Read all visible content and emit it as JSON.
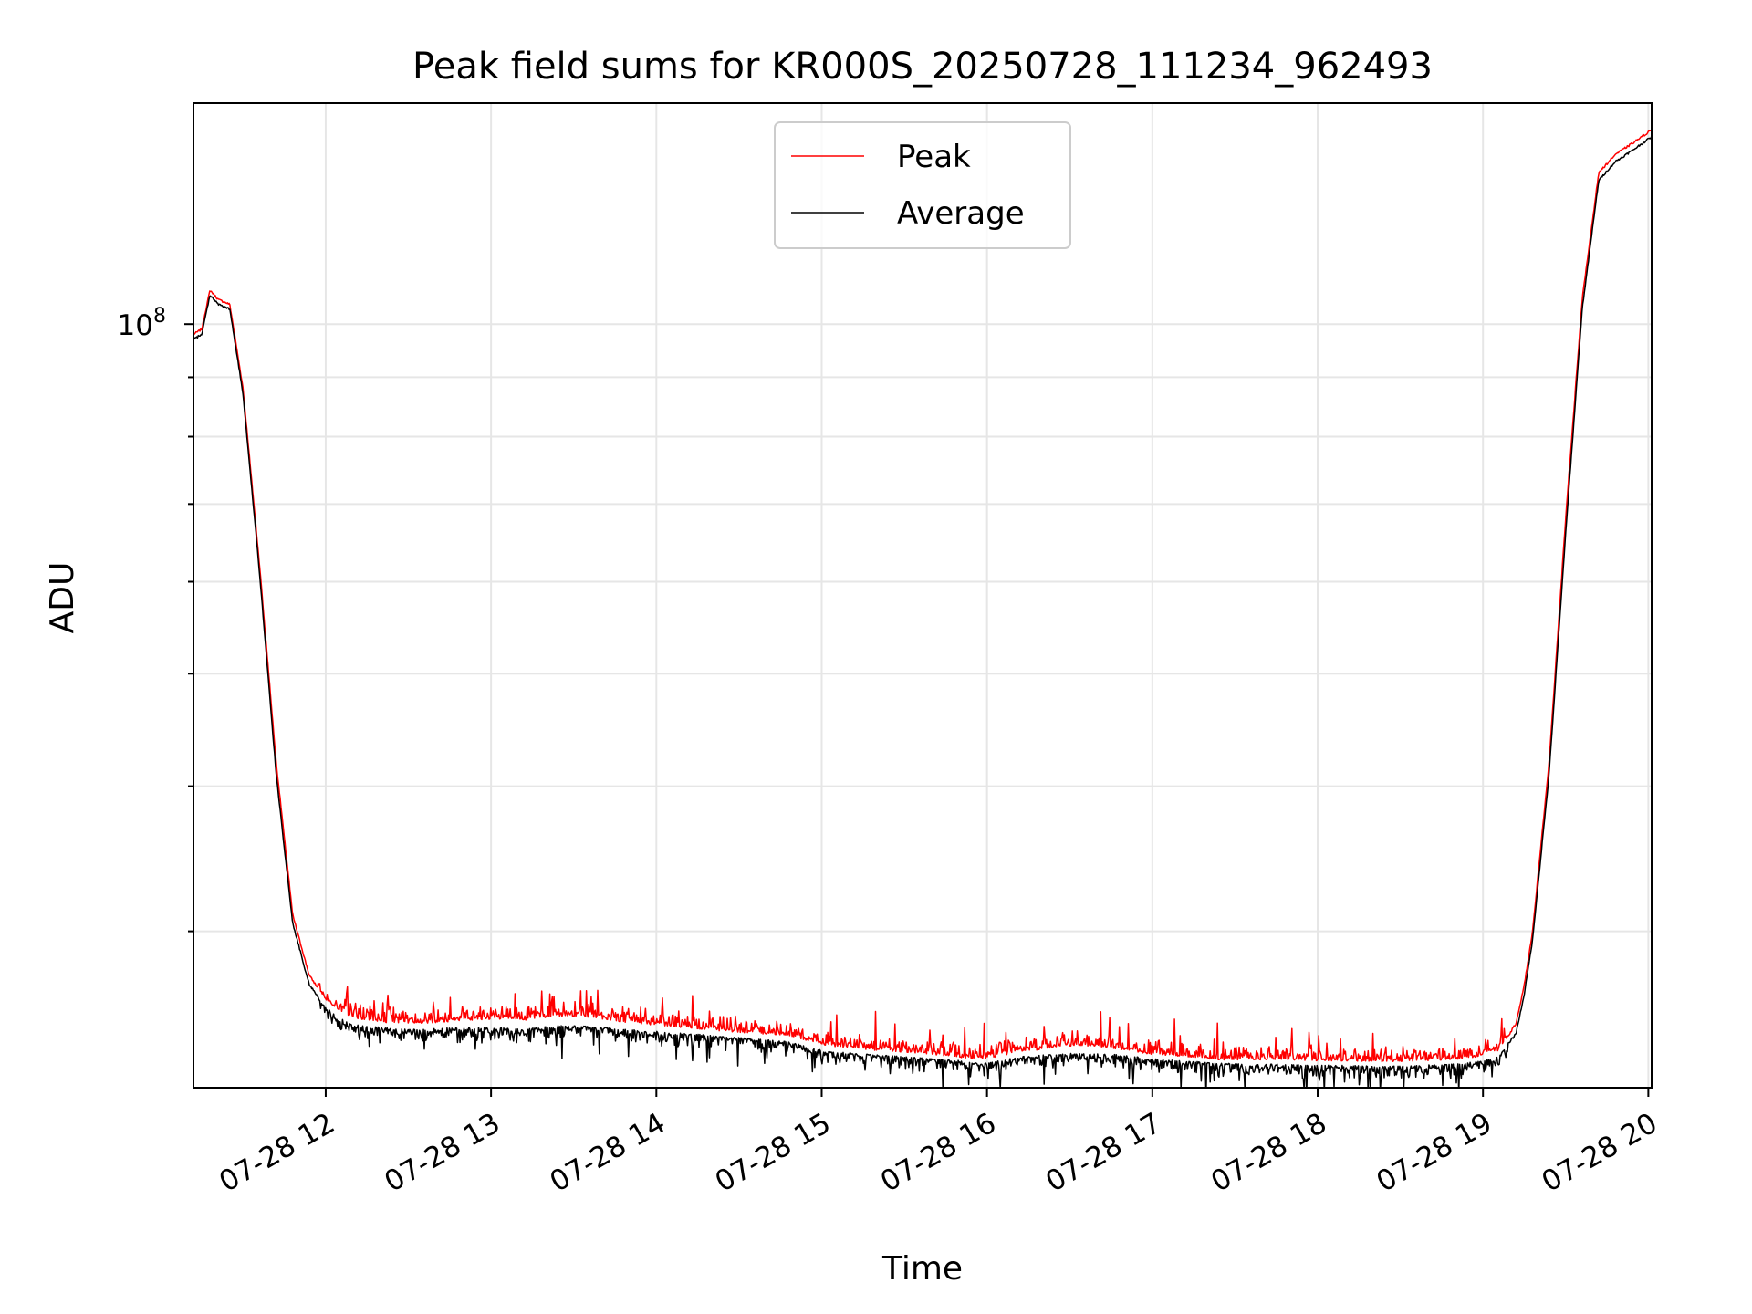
{
  "chart_data": {
    "type": "line",
    "title": "Peak field sums for KR000S_20250728_111234_962493",
    "xlabel": "Time",
    "ylabel": "ADU",
    "yscale": "log",
    "x_tick_labels": [
      "07-28 12",
      "07-28 13",
      "07-28 14",
      "07-28 15",
      "07-28 16",
      "07-28 17",
      "07-28 18",
      "07-28 19",
      "07-28 20"
    ],
    "y_tick_label": {
      "base": "10",
      "exponent": "8"
    },
    "xlim": [
      "07-28 11:12",
      "07-28 20:00"
    ],
    "ylim": [
      22000000,
      155000000
    ],
    "grid": true,
    "legend_position": "upper center",
    "x_hours": [
      11.2,
      11.25,
      11.3,
      11.35,
      11.42,
      11.5,
      11.6,
      11.7,
      11.8,
      11.9,
      12.0,
      12.1,
      12.2,
      12.4,
      12.6,
      12.8,
      13.0,
      13.2,
      13.4,
      13.6,
      13.8,
      14.0,
      14.2,
      14.4,
      14.6,
      14.8,
      15.0,
      15.2,
      15.4,
      15.6,
      15.8,
      15.9,
      16.0,
      16.1,
      16.2,
      16.3,
      16.45,
      16.6,
      16.8,
      17.0,
      17.2,
      17.4,
      17.6,
      17.8,
      18.0,
      18.2,
      18.4,
      18.6,
      18.8,
      19.0,
      19.1,
      19.2,
      19.25,
      19.3,
      19.4,
      19.5,
      19.6,
      19.7,
      19.8,
      19.9,
      20.02
    ],
    "series": [
      {
        "name": "Peak",
        "color": "#ff0000",
        "values": [
          98000000,
          99000000,
          107000000,
          105000000,
          104000000,
          88000000,
          62000000,
          42000000,
          31000000,
          27500000,
          26200000,
          25500000,
          25200000,
          25000000,
          25000000,
          25100000,
          25200000,
          25150000,
          25350000,
          25300000,
          25050000,
          24900000,
          24750000,
          24600000,
          24500000,
          24400000,
          23950000,
          23750000,
          23650000,
          23550000,
          23400000,
          23300000,
          23300000,
          23450000,
          23650000,
          23700000,
          23900000,
          23900000,
          23750000,
          23500000,
          23400000,
          23250000,
          23250000,
          23250000,
          23200000,
          23200000,
          23150000,
          23200000,
          23250000,
          23400000,
          23700000,
          25000000,
          27000000,
          30000000,
          42000000,
          68000000,
          105000000,
          135000000,
          140000000,
          143000000,
          147000000
        ]
      },
      {
        "name": "Average",
        "color": "#000000",
        "values": [
          97000000,
          98000000,
          106000000,
          104000000,
          103000000,
          87000000,
          61000000,
          41000000,
          30500000,
          27000000,
          25800000,
          25200000,
          24900000,
          24750000,
          24700000,
          24800000,
          24800000,
          24700000,
          24900000,
          24850000,
          24700000,
          24600000,
          24500000,
          24350000,
          24250000,
          24100000,
          23700000,
          23550000,
          23450000,
          23350000,
          23250000,
          23150000,
          23100000,
          23250000,
          23400000,
          23450000,
          23550000,
          23550000,
          23500000,
          23300000,
          23200000,
          23100000,
          23050000,
          23050000,
          23000000,
          23000000,
          22950000,
          23000000,
          23050000,
          23200000,
          23450000,
          24500000,
          26500000,
          29500000,
          41000000,
          66000000,
          103000000,
          133000000,
          138000000,
          141000000,
          145000000
        ]
      }
    ]
  }
}
